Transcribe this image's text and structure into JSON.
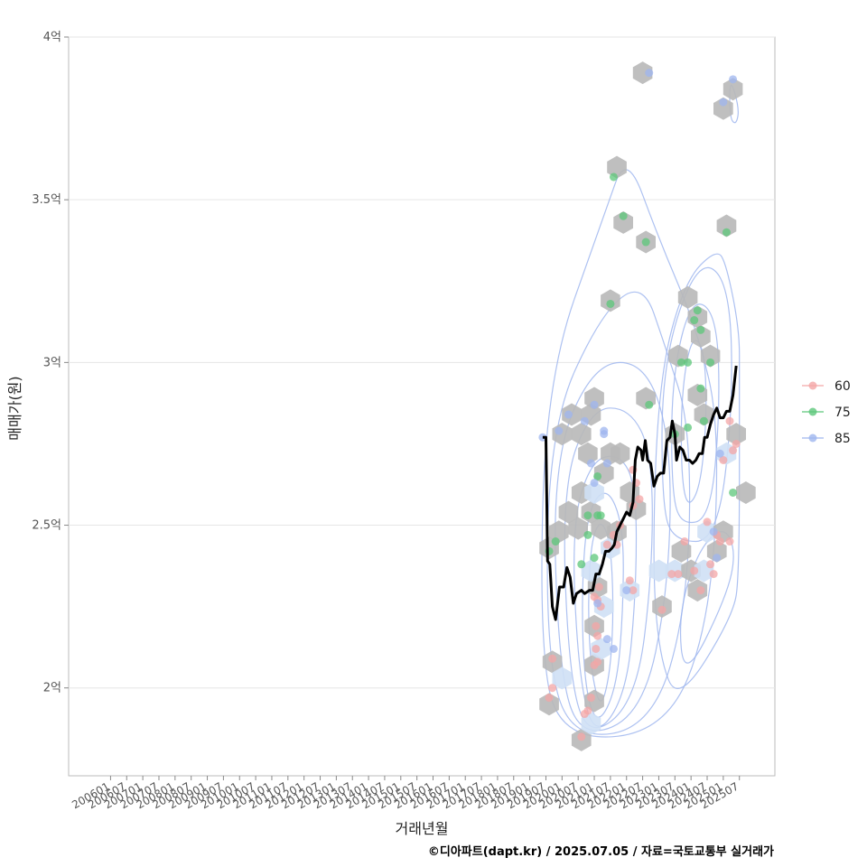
{
  "chart_data": {
    "type": "scatter",
    "title": "",
    "xlabel": "거래년월",
    "ylabel": "매매가(원)",
    "caption": "©디아파트(dapt.kr) / 2025.07.05 / 자료=국토교통부 실거래가",
    "x_ticks": [
      "200601",
      "200607",
      "200701",
      "200707",
      "200801",
      "200807",
      "200901",
      "200907",
      "201001",
      "201007",
      "201101",
      "201107",
      "201201",
      "201207",
      "201301",
      "201307",
      "201401",
      "201407",
      "201501",
      "201507",
      "201601",
      "201607",
      "201701",
      "201707",
      "201801",
      "201807",
      "201901",
      "201907",
      "202001",
      "202007",
      "202101",
      "202107",
      "202201",
      "202207",
      "202301",
      "202307",
      "202401",
      "202407",
      "202501",
      "202507"
    ],
    "xlim": [
      2004.7,
      2026.6
    ],
    "ylim": [
      1.73,
      4.0
    ],
    "y_ticks": [
      {
        "value": 2.0,
        "label": "2억"
      },
      {
        "value": 2.5,
        "label": "2.5억"
      },
      {
        "value": 3.0,
        "label": "3억"
      },
      {
        "value": 3.5,
        "label": "3.5억"
      },
      {
        "value": 4.0,
        "label": "4억"
      }
    ],
    "grid": true,
    "legend_position": "right",
    "colors": {
      "60": "#f4a6a6",
      "75": "#5cc77a",
      "85": "#9fb6ef",
      "line": "#000000",
      "hex": "#b8b8b8",
      "hex_light": "#cfe0f5",
      "contour": "#9fb6ef",
      "grid": "#e6e6e6",
      "frame": "#bbbbbb"
    },
    "series": [
      {
        "name": "60",
        "points": [
          [
            2019.6,
            1.97
          ],
          [
            2019.7,
            2.0
          ],
          [
            2019.7,
            2.09
          ],
          [
            2020.6,
            1.85
          ],
          [
            2020.7,
            1.92
          ],
          [
            2020.8,
            1.93
          ],
          [
            2020.9,
            1.97
          ],
          [
            2021.0,
            2.07
          ],
          [
            2021.1,
            2.08
          ],
          [
            2021.05,
            2.12
          ],
          [
            2021.1,
            2.16
          ],
          [
            2021.05,
            2.19
          ],
          [
            2021.1,
            2.27
          ],
          [
            2021.2,
            2.25
          ],
          [
            2021.15,
            2.31
          ],
          [
            2021.0,
            2.28
          ],
          [
            2021.4,
            2.44
          ],
          [
            2021.7,
            2.44
          ],
          [
            2021.6,
            2.47
          ],
          [
            2021.8,
            2.5
          ],
          [
            2022.1,
            2.33
          ],
          [
            2022.2,
            2.3
          ],
          [
            2022.4,
            2.58
          ],
          [
            2022.2,
            2.56
          ],
          [
            2022.2,
            2.67
          ],
          [
            2022.3,
            2.63
          ],
          [
            2023.1,
            2.24
          ],
          [
            2023.4,
            2.35
          ],
          [
            2023.6,
            2.35
          ],
          [
            2023.8,
            2.45
          ],
          [
            2024.1,
            2.36
          ],
          [
            2024.3,
            2.3
          ],
          [
            2024.5,
            2.51
          ],
          [
            2024.6,
            2.38
          ],
          [
            2024.7,
            2.35
          ],
          [
            2024.9,
            2.45
          ],
          [
            2024.8,
            2.47
          ],
          [
            2025.0,
            2.7
          ],
          [
            2025.2,
            2.82
          ],
          [
            2025.2,
            2.45
          ],
          [
            2025.4,
            2.75
          ],
          [
            2025.3,
            2.73
          ]
        ]
      },
      {
        "name": "75",
        "points": [
          [
            2019.6,
            2.42
          ],
          [
            2019.8,
            2.45
          ],
          [
            2020.6,
            2.38
          ],
          [
            2020.8,
            2.47
          ],
          [
            2020.8,
            2.53
          ],
          [
            2021.1,
            2.53
          ],
          [
            2021.2,
            2.53
          ],
          [
            2021.0,
            2.4
          ],
          [
            2021.1,
            2.65
          ],
          [
            2021.5,
            3.18
          ],
          [
            2021.6,
            3.57
          ],
          [
            2021.9,
            3.45
          ],
          [
            2022.6,
            3.37
          ],
          [
            2022.7,
            2.87
          ],
          [
            2023.5,
            2.78
          ],
          [
            2023.7,
            3.0
          ],
          [
            2023.9,
            3.0
          ],
          [
            2023.9,
            2.8
          ],
          [
            2024.1,
            3.13
          ],
          [
            2024.2,
            3.16
          ],
          [
            2024.3,
            3.1
          ],
          [
            2024.3,
            2.92
          ],
          [
            2024.4,
            2.82
          ],
          [
            2024.6,
            3.0
          ],
          [
            2025.1,
            3.4
          ],
          [
            2025.3,
            2.6
          ]
        ]
      },
      {
        "name": "85",
        "points": [
          [
            2019.4,
            2.77
          ],
          [
            2019.9,
            2.79
          ],
          [
            2020.2,
            2.84
          ],
          [
            2020.7,
            2.82
          ],
          [
            2020.9,
            2.69
          ],
          [
            2021.0,
            2.63
          ],
          [
            2021.0,
            2.87
          ],
          [
            2021.3,
            2.78
          ],
          [
            2021.3,
            2.79
          ],
          [
            2021.4,
            2.69
          ],
          [
            2021.1,
            2.26
          ],
          [
            2021.4,
            2.15
          ],
          [
            2021.6,
            2.12
          ],
          [
            2022.0,
            2.3
          ],
          [
            2022.7,
            3.89
          ],
          [
            2025.0,
            3.8
          ],
          [
            2025.3,
            3.87
          ],
          [
            2024.7,
            2.48
          ],
          [
            2024.9,
            2.72
          ],
          [
            2024.8,
            2.4
          ]
        ]
      }
    ],
    "hexbins": [
      [
        2019.6,
        1.95,
        "d"
      ],
      [
        2019.7,
        2.08,
        "d"
      ],
      [
        2020.0,
        2.03,
        "l"
      ],
      [
        2020.6,
        1.84,
        "d"
      ],
      [
        2020.9,
        1.89,
        "l"
      ],
      [
        2021.0,
        1.96,
        "d"
      ],
      [
        2021.0,
        2.07,
        "d"
      ],
      [
        2021.2,
        2.12,
        "l"
      ],
      [
        2021.0,
        2.19,
        "d"
      ],
      [
        2021.3,
        2.25,
        "l"
      ],
      [
        2021.1,
        2.31,
        "d"
      ],
      [
        2020.9,
        2.36,
        "l"
      ],
      [
        2019.6,
        2.43,
        "d"
      ],
      [
        2019.9,
        2.48,
        "d"
      ],
      [
        2020.2,
        2.54,
        "d"
      ],
      [
        2020.5,
        2.49,
        "d"
      ],
      [
        2020.6,
        2.6,
        "d"
      ],
      [
        2020.9,
        2.54,
        "d"
      ],
      [
        2021.2,
        2.49,
        "d"
      ],
      [
        2021.5,
        2.43,
        "l"
      ],
      [
        2021.7,
        2.48,
        "d"
      ],
      [
        2021.0,
        2.6,
        "l"
      ],
      [
        2021.3,
        2.66,
        "d"
      ],
      [
        2021.5,
        2.72,
        "d"
      ],
      [
        2021.8,
        2.72,
        "d"
      ],
      [
        2022.1,
        2.6,
        "d"
      ],
      [
        2022.3,
        2.55,
        "d"
      ],
      [
        2020.0,
        2.78,
        "d"
      ],
      [
        2020.3,
        2.84,
        "d"
      ],
      [
        2020.6,
        2.78,
        "d"
      ],
      [
        2020.9,
        2.84,
        "d"
      ],
      [
        2021.0,
        2.89,
        "d"
      ],
      [
        2020.8,
        2.72,
        "d"
      ],
      [
        2022.1,
        2.3,
        "l"
      ],
      [
        2023.0,
        2.36,
        "l"
      ],
      [
        2023.1,
        2.25,
        "d"
      ],
      [
        2023.5,
        2.36,
        "l"
      ],
      [
        2023.7,
        2.42,
        "d"
      ],
      [
        2024.0,
        2.36,
        "d"
      ],
      [
        2024.2,
        2.3,
        "d"
      ],
      [
        2024.4,
        2.36,
        "l"
      ],
      [
        2024.5,
        2.48,
        "l"
      ],
      [
        2024.8,
        2.42,
        "d"
      ],
      [
        2025.0,
        2.48,
        "d"
      ],
      [
        2025.1,
        2.72,
        "l"
      ],
      [
        2025.4,
        2.78,
        "d"
      ],
      [
        2025.7,
        2.6,
        "d"
      ],
      [
        2024.4,
        2.84,
        "d"
      ],
      [
        2024.2,
        2.9,
        "d"
      ],
      [
        2024.6,
        3.02,
        "d"
      ],
      [
        2024.3,
        3.08,
        "d"
      ],
      [
        2023.6,
        3.02,
        "d"
      ],
      [
        2023.9,
        3.2,
        "d"
      ],
      [
        2024.2,
        3.14,
        "d"
      ],
      [
        2023.5,
        2.78,
        "d"
      ],
      [
        2022.6,
        2.89,
        "d"
      ],
      [
        2022.6,
        3.37,
        "d"
      ],
      [
        2021.5,
        3.19,
        "d"
      ],
      [
        2021.9,
        3.43,
        "d"
      ],
      [
        2021.7,
        3.6,
        "d"
      ],
      [
        2022.5,
        3.89,
        "d"
      ],
      [
        2025.0,
        3.78,
        "d"
      ],
      [
        2025.3,
        3.84,
        "d"
      ],
      [
        2025.1,
        3.42,
        "d"
      ]
    ],
    "median_line": [
      [
        2019.4,
        2.77
      ],
      [
        2019.5,
        2.77
      ],
      [
        2019.55,
        2.39
      ],
      [
        2019.62,
        2.38
      ],
      [
        2019.7,
        2.25
      ],
      [
        2019.8,
        2.21
      ],
      [
        2019.92,
        2.31
      ],
      [
        2020.05,
        2.31
      ],
      [
        2020.15,
        2.37
      ],
      [
        2020.25,
        2.34
      ],
      [
        2020.35,
        2.26
      ],
      [
        2020.45,
        2.29
      ],
      [
        2020.6,
        2.3
      ],
      [
        2020.7,
        2.29
      ],
      [
        2020.85,
        2.3
      ],
      [
        2020.95,
        2.3
      ],
      [
        2021.05,
        2.35
      ],
      [
        2021.15,
        2.35
      ],
      [
        2021.25,
        2.38
      ],
      [
        2021.35,
        2.42
      ],
      [
        2021.45,
        2.42
      ],
      [
        2021.55,
        2.43
      ],
      [
        2021.62,
        2.44
      ],
      [
        2021.7,
        2.48
      ],
      [
        2021.8,
        2.5
      ],
      [
        2021.9,
        2.52
      ],
      [
        2022.0,
        2.54
      ],
      [
        2022.1,
        2.53
      ],
      [
        2022.2,
        2.57
      ],
      [
        2022.27,
        2.7
      ],
      [
        2022.35,
        2.74
      ],
      [
        2022.45,
        2.73
      ],
      [
        2022.5,
        2.7
      ],
      [
        2022.58,
        2.76
      ],
      [
        2022.65,
        2.7
      ],
      [
        2022.75,
        2.69
      ],
      [
        2022.85,
        2.62
      ],
      [
        2022.95,
        2.65
      ],
      [
        2023.05,
        2.66
      ],
      [
        2023.15,
        2.66
      ],
      [
        2023.25,
        2.76
      ],
      [
        2023.35,
        2.77
      ],
      [
        2023.42,
        2.82
      ],
      [
        2023.5,
        2.78
      ],
      [
        2023.55,
        2.7
      ],
      [
        2023.65,
        2.74
      ],
      [
        2023.75,
        2.73
      ],
      [
        2023.85,
        2.7
      ],
      [
        2023.95,
        2.7
      ],
      [
        2024.05,
        2.69
      ],
      [
        2024.15,
        2.7
      ],
      [
        2024.25,
        2.72
      ],
      [
        2024.35,
        2.72
      ],
      [
        2024.42,
        2.77
      ],
      [
        2024.5,
        2.77
      ],
      [
        2024.6,
        2.81
      ],
      [
        2024.7,
        2.84
      ],
      [
        2024.8,
        2.86
      ],
      [
        2024.9,
        2.83
      ],
      [
        2025.0,
        2.83
      ],
      [
        2025.1,
        2.85
      ],
      [
        2025.2,
        2.85
      ],
      [
        2025.3,
        2.9
      ],
      [
        2025.4,
        2.99
      ]
    ],
    "contours": [
      [
        [
          2021.2,
          1.93
        ],
        [
          2021.5,
          2.05
        ],
        [
          2021.6,
          2.25
        ],
        [
          2021.5,
          2.45
        ],
        [
          2021.2,
          2.52
        ],
        [
          2020.9,
          2.45
        ],
        [
          2020.8,
          2.25
        ],
        [
          2020.9,
          2.05
        ]
      ],
      [
        [
          2021.1,
          1.88
        ],
        [
          2021.7,
          2.0
        ],
        [
          2021.9,
          2.25
        ],
        [
          2021.9,
          2.5
        ],
        [
          2021.4,
          2.62
        ],
        [
          2020.8,
          2.55
        ],
        [
          2020.6,
          2.3
        ],
        [
          2020.7,
          2.0
        ]
      ],
      [
        [
          2021.0,
          1.84
        ],
        [
          2022.0,
          1.98
        ],
        [
          2022.3,
          2.3
        ],
        [
          2022.3,
          2.62
        ],
        [
          2021.8,
          2.72
        ],
        [
          2020.9,
          2.7
        ],
        [
          2020.3,
          2.5
        ],
        [
          2020.5,
          2.05
        ]
      ],
      [
        [
          2020.8,
          1.84
        ],
        [
          2022.3,
          1.96
        ],
        [
          2022.8,
          2.35
        ],
        [
          2022.8,
          2.72
        ],
        [
          2022.1,
          2.86
        ],
        [
          2020.9,
          2.86
        ],
        [
          2020.0,
          2.62
        ],
        [
          2020.2,
          2.05
        ]
      ],
      [
        [
          2020.6,
          1.84
        ],
        [
          2022.5,
          1.92
        ],
        [
          2023.3,
          2.3
        ],
        [
          2023.4,
          2.75
        ],
        [
          2022.6,
          3.0
        ],
        [
          2021.0,
          3.0
        ],
        [
          2019.7,
          2.7
        ],
        [
          2019.9,
          2.05
        ]
      ],
      [
        [
          2020.3,
          1.84
        ],
        [
          2022.8,
          1.88
        ],
        [
          2023.9,
          2.25
        ],
        [
          2024.0,
          2.8
        ],
        [
          2023.2,
          3.05
        ],
        [
          2022.5,
          3.25
        ],
        [
          2021.2,
          3.15
        ],
        [
          2019.6,
          2.8
        ],
        [
          2019.5,
          2.1
        ]
      ],
      [
        [
          2019.9,
          1.84
        ],
        [
          2023.2,
          1.86
        ],
        [
          2024.6,
          2.2
        ],
        [
          2024.9,
          2.8
        ],
        [
          2024.2,
          3.1
        ],
        [
          2023.0,
          3.38
        ],
        [
          2022.0,
          3.65
        ],
        [
          2021.3,
          3.45
        ],
        [
          2019.5,
          2.95
        ],
        [
          2019.3,
          2.15
        ]
      ],
      [
        [
          2023.9,
          2.55
        ],
        [
          2024.3,
          2.62
        ],
        [
          2024.5,
          2.85
        ],
        [
          2024.4,
          3.05
        ],
        [
          2024.0,
          3.08
        ],
        [
          2023.7,
          2.9
        ],
        [
          2023.7,
          2.65
        ]
      ],
      [
        [
          2023.7,
          2.5
        ],
        [
          2024.6,
          2.52
        ],
        [
          2024.9,
          2.85
        ],
        [
          2024.8,
          3.15
        ],
        [
          2024.0,
          3.2
        ],
        [
          2023.4,
          2.95
        ],
        [
          2023.4,
          2.6
        ]
      ],
      [
        [
          2023.5,
          2.45
        ],
        [
          2024.8,
          2.45
        ],
        [
          2025.3,
          2.85
        ],
        [
          2025.2,
          3.25
        ],
        [
          2024.2,
          3.32
        ],
        [
          2023.1,
          3.0
        ],
        [
          2023.1,
          2.55
        ]
      ],
      [
        [
          2023.8,
          2.02
        ],
        [
          2025.1,
          2.28
        ],
        [
          2025.4,
          2.42
        ],
        [
          2025.0,
          2.5
        ],
        [
          2024.2,
          2.42
        ],
        [
          2023.6,
          2.22
        ]
      ],
      [
        [
          2023.6,
          1.95
        ],
        [
          2025.3,
          2.22
        ],
        [
          2025.5,
          2.35
        ],
        [
          2025.5,
          2.95
        ],
        [
          2025.5,
          3.1
        ],
        [
          2025.1,
          3.3
        ],
        [
          2024.8,
          3.35
        ],
        [
          2023.8,
          3.25
        ],
        [
          2023.0,
          2.95
        ],
        [
          2022.8,
          2.4
        ],
        [
          2023.0,
          2.1
        ]
      ],
      [
        [
          2025.2,
          3.88
        ],
        [
          2025.5,
          3.78
        ],
        [
          2025.4,
          3.73
        ],
        [
          2025.2,
          3.75
        ]
      ]
    ]
  }
}
